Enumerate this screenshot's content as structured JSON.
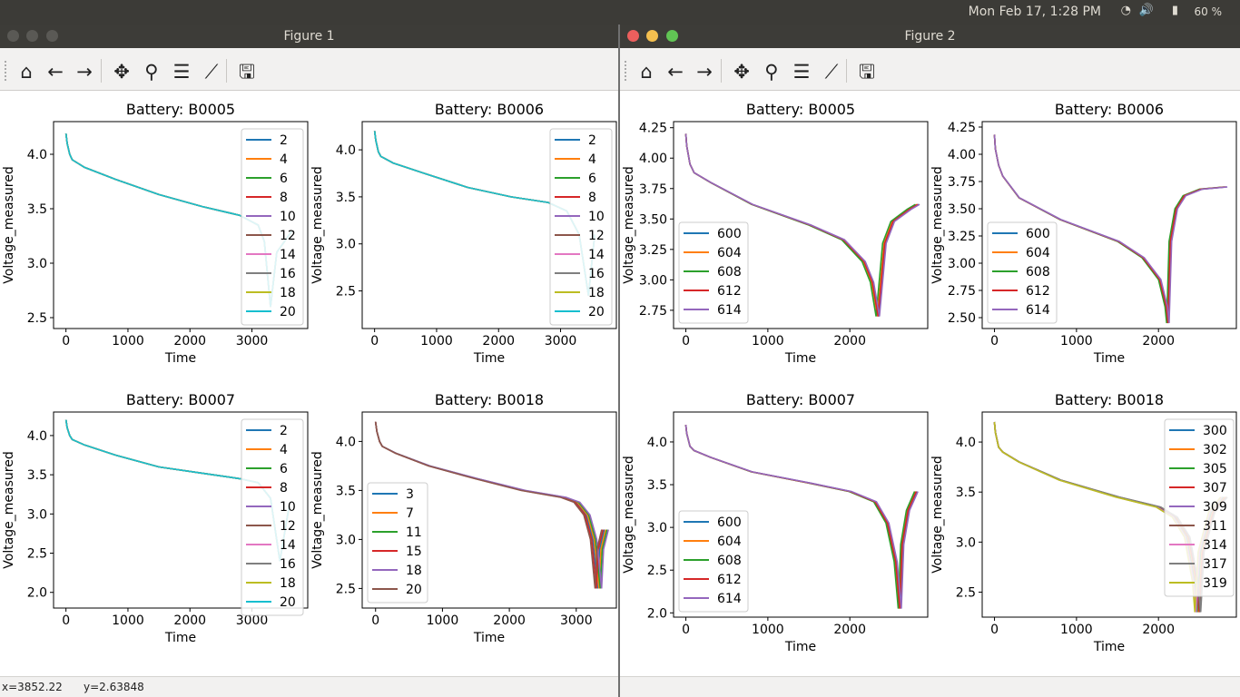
{
  "topbar": {
    "clock": "Mon Feb 17,  1:28 PM",
    "battery": "60 %"
  },
  "windows": [
    {
      "title": "Figure 1",
      "status": {
        "x": "x=3852.22",
        "y": "y=2.63848"
      }
    },
    {
      "title": "Figure 2",
      "status": {
        "x": "",
        "y": ""
      }
    }
  ],
  "toolbar": [
    "home-icon",
    "back-icon",
    "forward-icon",
    "pan-icon",
    "zoom-icon",
    "configure-subplots-icon",
    "edit-curves-icon",
    "save-icon"
  ],
  "colors": [
    "#1f77b4",
    "#ff7f0e",
    "#2ca02c",
    "#d62728",
    "#9467bd",
    "#8c564b",
    "#e377c2",
    "#7f7f7f",
    "#bcbd22",
    "#17becf"
  ],
  "chart_data": [
    {
      "figure": "Figure 1",
      "type": "line",
      "title": "Battery: B0005",
      "xlabel": "Time",
      "ylabel": "Voltage_measured",
      "xlim": [
        -200,
        3900
      ],
      "ylim": [
        2.4,
        4.3
      ],
      "xticks": [
        0,
        1000,
        2000,
        3000
      ],
      "yticks": [
        2.5,
        3.0,
        3.5,
        4.0
      ],
      "xtick_labels": [
        "0",
        "1000",
        "2000",
        "3000"
      ],
      "ytick_labels": [
        "2.5",
        "3.0",
        "3.5",
        "4.0"
      ],
      "legend": "right",
      "series": [
        {
          "name": "2",
          "end": 3600,
          "min": 2.6
        },
        {
          "name": "4",
          "end": 3600,
          "min": 2.6
        },
        {
          "name": "6",
          "end": 3600,
          "min": 2.6
        },
        {
          "name": "8",
          "end": 3600,
          "min": 2.6
        },
        {
          "name": "10",
          "end": 3600,
          "min": 2.6
        },
        {
          "name": "12",
          "end": 3600,
          "min": 2.6
        },
        {
          "name": "14",
          "end": 3600,
          "min": 2.6
        },
        {
          "name": "16",
          "end": 3600,
          "min": 2.6
        },
        {
          "name": "18",
          "end": 3600,
          "min": 2.6
        },
        {
          "name": "20",
          "end": 3650,
          "min": 2.55
        }
      ],
      "x": [
        0,
        20,
        60,
        100,
        300,
        800,
        1500,
        2200,
        2800,
        3100,
        3200,
        3300,
        3400,
        3650
      ],
      "y": [
        4.19,
        4.1,
        4.0,
        3.95,
        3.88,
        3.77,
        3.63,
        3.52,
        3.44,
        3.35,
        3.2,
        2.6,
        3.1,
        3.3
      ]
    },
    {
      "figure": "Figure 1",
      "type": "line",
      "title": "Battery: B0006",
      "xlabel": "Time",
      "ylabel": "Voltage_measured",
      "xlim": [
        -200,
        3900
      ],
      "ylim": [
        2.1,
        4.3
      ],
      "xticks": [
        0,
        1000,
        2000,
        3000
      ],
      "yticks": [
        2.5,
        3.0,
        3.5,
        4.0
      ],
      "xtick_labels": [
        "0",
        "1000",
        "2000",
        "3000"
      ],
      "ytick_labels": [
        "2.5",
        "3.0",
        "3.5",
        "4.0"
      ],
      "legend": "right",
      "series": [
        {
          "name": "2"
        },
        {
          "name": "4"
        },
        {
          "name": "6"
        },
        {
          "name": "8"
        },
        {
          "name": "10"
        },
        {
          "name": "12"
        },
        {
          "name": "14"
        },
        {
          "name": "16"
        },
        {
          "name": "18"
        },
        {
          "name": "20"
        }
      ],
      "x": [
        0,
        20,
        60,
        100,
        300,
        800,
        1500,
        2200,
        2800,
        3100,
        3300,
        3450,
        3550
      ],
      "y": [
        4.2,
        4.1,
        3.98,
        3.93,
        3.86,
        3.75,
        3.6,
        3.5,
        3.44,
        3.35,
        3.1,
        2.45,
        3.1
      ]
    },
    {
      "figure": "Figure 1",
      "type": "line",
      "title": "Battery: B0007",
      "xlabel": "Time",
      "ylabel": "Voltage_measured",
      "xlim": [
        -200,
        3900
      ],
      "ylim": [
        1.8,
        4.3
      ],
      "xticks": [
        0,
        1000,
        2000,
        3000
      ],
      "yticks": [
        2.0,
        2.5,
        3.0,
        3.5,
        4.0
      ],
      "xtick_labels": [
        "0",
        "1000",
        "2000",
        "3000"
      ],
      "ytick_labels": [
        "2.0",
        "2.5",
        "3.0",
        "3.5",
        "4.0"
      ],
      "legend": "right",
      "series": [
        {
          "name": "2"
        },
        {
          "name": "4"
        },
        {
          "name": "6"
        },
        {
          "name": "8"
        },
        {
          "name": "10"
        },
        {
          "name": "12"
        },
        {
          "name": "14"
        },
        {
          "name": "16"
        },
        {
          "name": "18"
        },
        {
          "name": "20"
        }
      ],
      "x": [
        0,
        20,
        60,
        100,
        300,
        800,
        1500,
        2200,
        2800,
        3100,
        3300,
        3450,
        3600
      ],
      "y": [
        4.2,
        4.1,
        4.0,
        3.95,
        3.88,
        3.75,
        3.6,
        3.52,
        3.45,
        3.4,
        3.2,
        2.4,
        3.1
      ]
    },
    {
      "figure": "Figure 1",
      "type": "line",
      "title": "Battery: B0018",
      "xlabel": "Time",
      "ylabel": "Voltage_measured",
      "xlim": [
        -200,
        3600
      ],
      "ylim": [
        2.3,
        4.3
      ],
      "xticks": [
        0,
        1000,
        2000,
        3000
      ],
      "yticks": [
        2.5,
        3.0,
        3.5,
        4.0
      ],
      "xtick_labels": [
        "0",
        "1000",
        "2000",
        "3000"
      ],
      "ytick_labels": [
        "2.5",
        "3.0",
        "3.5",
        "4.0"
      ],
      "legend": "left",
      "series": [
        {
          "name": "3",
          "shift": 0
        },
        {
          "name": "7",
          "shift": 20
        },
        {
          "name": "11",
          "shift": 40
        },
        {
          "name": "15",
          "shift": -20
        },
        {
          "name": "18",
          "shift": 60
        },
        {
          "name": "20",
          "shift": -40
        }
      ],
      "x": [
        0,
        20,
        60,
        100,
        300,
        800,
        1500,
        2200,
        2800,
        3000,
        3150,
        3250,
        3320,
        3350,
        3420
      ],
      "y": [
        4.2,
        4.1,
        4.0,
        3.95,
        3.88,
        3.75,
        3.62,
        3.5,
        3.43,
        3.38,
        3.25,
        3.0,
        2.5,
        2.9,
        3.1
      ]
    },
    {
      "figure": "Figure 2",
      "type": "line",
      "title": "Battery: B0005",
      "xlabel": "Time",
      "ylabel": "Voltage_measured",
      "xlim": [
        -150,
        2950
      ],
      "ylim": [
        2.6,
        4.3
      ],
      "xticks": [
        0,
        1000,
        2000
      ],
      "yticks": [
        2.75,
        3.0,
        3.25,
        3.5,
        3.75,
        4.0,
        4.25
      ],
      "xtick_labels": [
        "0",
        "1000",
        "2000"
      ],
      "ytick_labels": [
        "2.75",
        "3.00",
        "3.25",
        "3.50",
        "3.75",
        "4.00",
        "4.25"
      ],
      "legend": "left",
      "series": [
        {
          "name": "600",
          "color": 0,
          "shift": 40
        },
        {
          "name": "604",
          "color": 1,
          "shift": 20
        },
        {
          "name": "608",
          "color": 2,
          "shift": 0
        },
        {
          "name": "612",
          "color": 3,
          "shift": 30
        },
        {
          "name": "614",
          "color": 4,
          "shift": 50
        }
      ],
      "x": [
        0,
        10,
        50,
        100,
        300,
        800,
        1500,
        1900,
        2150,
        2250,
        2320,
        2360,
        2400,
        2500,
        2700,
        2800
      ],
      "y": [
        4.2,
        4.1,
        3.95,
        3.88,
        3.8,
        3.62,
        3.45,
        3.33,
        3.15,
        2.98,
        2.7,
        3.0,
        3.3,
        3.48,
        3.58,
        3.62
      ]
    },
    {
      "figure": "Figure 2",
      "type": "line",
      "title": "Battery: B0006",
      "xlabel": "Time",
      "ylabel": "Voltage_measured",
      "xlim": [
        -150,
        2950
      ],
      "ylim": [
        2.4,
        4.3
      ],
      "xticks": [
        0,
        1000,
        2000
      ],
      "yticks": [
        2.5,
        2.75,
        3.0,
        3.25,
        3.5,
        3.75,
        4.0,
        4.25
      ],
      "xtick_labels": [
        "0",
        "1000",
        "2000"
      ],
      "ytick_labels": [
        "2.50",
        "2.75",
        "3.00",
        "3.25",
        "3.50",
        "3.75",
        "4.00",
        "4.25"
      ],
      "legend": "left",
      "series": [
        {
          "name": "600",
          "color": 0,
          "shift": 30
        },
        {
          "name": "604",
          "color": 1,
          "shift": 10
        },
        {
          "name": "608",
          "color": 2,
          "shift": 0
        },
        {
          "name": "612",
          "color": 3,
          "shift": 20
        },
        {
          "name": "614",
          "color": 4,
          "shift": 40
        }
      ],
      "x": [
        0,
        10,
        50,
        100,
        300,
        800,
        1500,
        1800,
        2000,
        2080,
        2100,
        2130,
        2200,
        2300,
        2500,
        2800
      ],
      "y": [
        4.18,
        4.05,
        3.9,
        3.8,
        3.6,
        3.4,
        3.2,
        3.05,
        2.85,
        2.6,
        2.45,
        3.2,
        3.5,
        3.62,
        3.68,
        3.7
      ]
    },
    {
      "figure": "Figure 2",
      "type": "line",
      "title": "Battery: B0007",
      "xlabel": "Time",
      "ylabel": "Voltage_measured",
      "xlim": [
        -150,
        2950
      ],
      "ylim": [
        1.95,
        4.35
      ],
      "xticks": [
        0,
        1000,
        2000
      ],
      "yticks": [
        2.0,
        2.5,
        3.0,
        3.5,
        4.0
      ],
      "xtick_labels": [
        "0",
        "1000",
        "2000"
      ],
      "ytick_labels": [
        "2.0",
        "2.5",
        "3.0",
        "3.5",
        "4.0"
      ],
      "legend": "left",
      "series": [
        {
          "name": "600",
          "color": 0,
          "shift": 20
        },
        {
          "name": "604",
          "color": 1,
          "shift": 0
        },
        {
          "name": "608",
          "color": 2,
          "shift": -10
        },
        {
          "name": "612",
          "color": 3,
          "shift": 10
        },
        {
          "name": "614",
          "color": 4,
          "shift": 30
        }
      ],
      "x": [
        0,
        10,
        50,
        100,
        300,
        800,
        1500,
        2000,
        2300,
        2450,
        2550,
        2600,
        2630,
        2700,
        2800
      ],
      "y": [
        4.2,
        4.1,
        3.95,
        3.9,
        3.82,
        3.65,
        3.52,
        3.42,
        3.3,
        3.05,
        2.6,
        2.05,
        2.8,
        3.2,
        3.42
      ]
    },
    {
      "figure": "Figure 2",
      "type": "line",
      "title": "Battery: B0018",
      "xlabel": "Time",
      "ylabel": "Voltage_measured",
      "xlim": [
        -150,
        2950
      ],
      "ylim": [
        2.25,
        4.3
      ],
      "xticks": [
        0,
        1000,
        2000
      ],
      "yticks": [
        2.5,
        3.0,
        3.5,
        4.0
      ],
      "xtick_labels": [
        "0",
        "1000",
        "2000"
      ],
      "ytick_labels": [
        "2.5",
        "3.0",
        "3.5",
        "4.0"
      ],
      "legend": "right",
      "series": [
        {
          "name": "300",
          "color": 0,
          "shift": 0
        },
        {
          "name": "302",
          "color": 1,
          "shift": 10
        },
        {
          "name": "305",
          "color": 2,
          "shift": -10
        },
        {
          "name": "307",
          "color": 3,
          "shift": 20
        },
        {
          "name": "309",
          "color": 4,
          "shift": -20
        },
        {
          "name": "311",
          "color": 5,
          "shift": 30
        },
        {
          "name": "314",
          "color": 6,
          "shift": -30
        },
        {
          "name": "317",
          "color": 7,
          "shift": 40
        },
        {
          "name": "319",
          "color": 8,
          "shift": -40
        }
      ],
      "x": [
        0,
        10,
        50,
        100,
        300,
        800,
        1500,
        2000,
        2200,
        2350,
        2450,
        2480,
        2520,
        2650,
        2800
      ],
      "y": [
        4.2,
        4.1,
        3.95,
        3.9,
        3.8,
        3.62,
        3.45,
        3.35,
        3.25,
        3.05,
        2.6,
        2.3,
        2.9,
        3.3,
        3.45
      ]
    }
  ]
}
